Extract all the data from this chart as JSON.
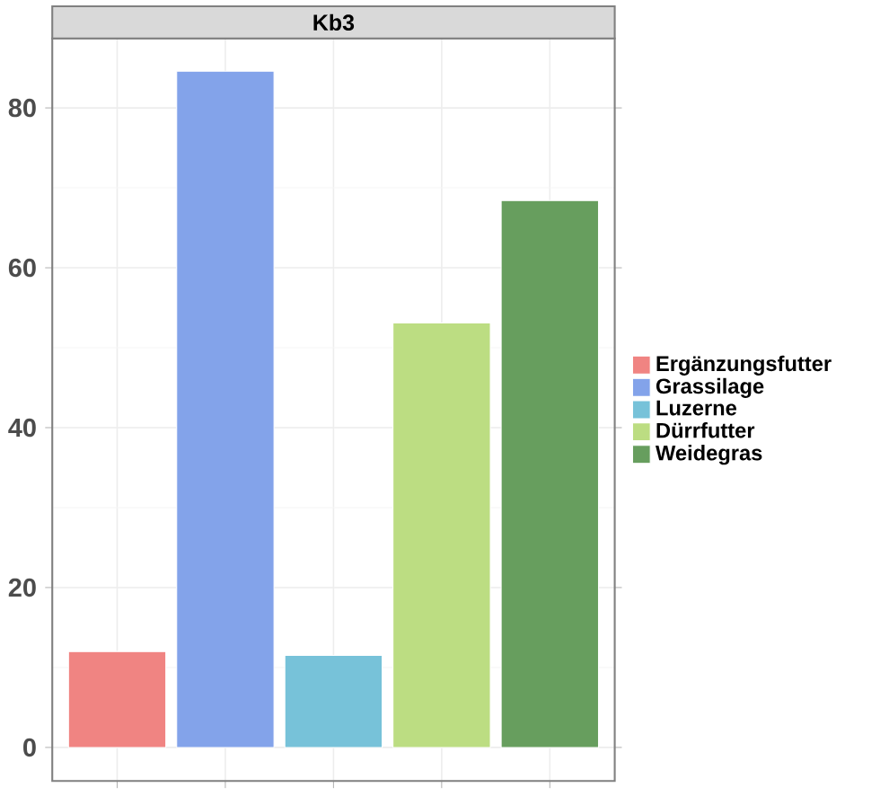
{
  "chart_data": {
    "type": "bar",
    "title": "Kb3",
    "categories": [
      null,
      null,
      null,
      null,
      null
    ],
    "series": [
      {
        "name": "Ergänzungsfutter",
        "color": "#f08482",
        "values": [
          12.0,
          null,
          null,
          null,
          null
        ]
      },
      {
        "name": "Grassilage",
        "color": "#83a3ea",
        "values": [
          null,
          84.6,
          null,
          null,
          null
        ]
      },
      {
        "name": "Luzerne",
        "color": "#77c2d9",
        "values": [
          null,
          null,
          11.5,
          null,
          null
        ]
      },
      {
        "name": "Dürrfutter",
        "color": "#bcdd82",
        "values": [
          null,
          null,
          null,
          53.1,
          null
        ]
      },
      {
        "name": "Weidegras",
        "color": "#679e5e",
        "values": [
          null,
          null,
          null,
          null,
          68.4
        ]
      }
    ],
    "ylim": [
      -4.2,
      88.7
    ],
    "yticks": [
      0,
      20,
      40,
      60,
      80
    ],
    "grid": true,
    "legend": "right",
    "tick_labels": "y"
  }
}
